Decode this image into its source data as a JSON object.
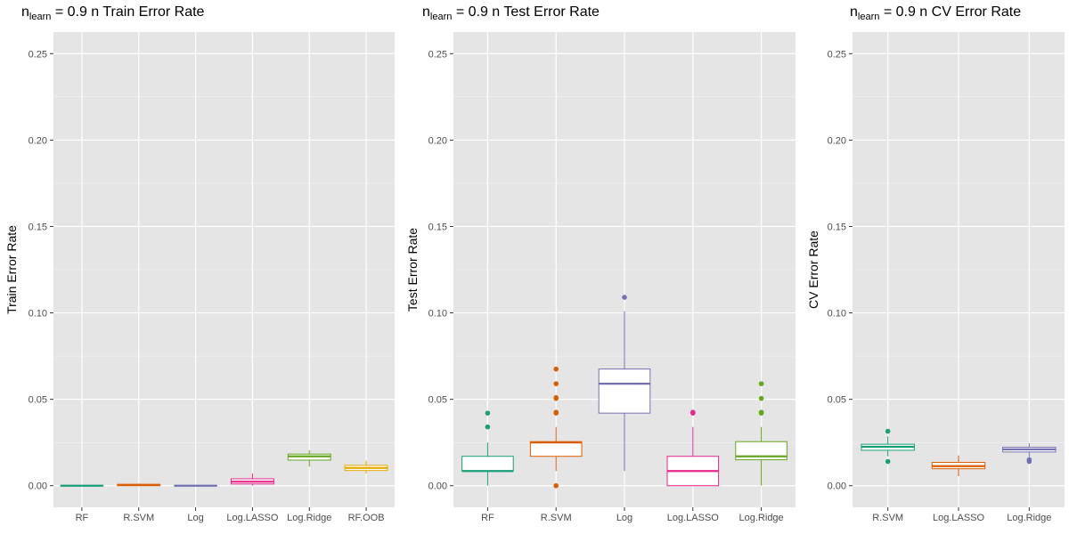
{
  "chart_data": [
    {
      "type": "box",
      "title_n": "n",
      "title_sub": "learn",
      "title_rest": " = 0.9 n  Train Error Rate",
      "xlabel": "",
      "ylabel": "Train Error Rate",
      "ylim": [
        -0.0125,
        0.2625
      ],
      "yticks": [
        "0.00",
        "0.05",
        "0.10",
        "0.15",
        "0.20",
        "0.25"
      ],
      "ytick_values": [
        0,
        0.05,
        0.1,
        0.15,
        0.2,
        0.25
      ],
      "categories": [
        "RF",
        "R.SVM",
        "Log",
        "Log.LASSO",
        "Log.Ridge",
        "RF.OOB"
      ],
      "boxes": [
        {
          "color": "#1b9e77",
          "min": 0,
          "q1": 0,
          "median": 0,
          "q3": 0,
          "max": 0,
          "outliers": []
        },
        {
          "color": "#d95f02",
          "min": 0,
          "q1": 0,
          "median": 0.0004,
          "q3": 0.0008,
          "max": 0.0012,
          "outliers": []
        },
        {
          "color": "#7570b3",
          "min": 0,
          "q1": 0,
          "median": 0,
          "q3": 0,
          "max": 0,
          "outliers": []
        },
        {
          "color": "#e7298a",
          "min": 0,
          "q1": 0.001,
          "median": 0.0023,
          "q3": 0.004,
          "max": 0.007,
          "outliers": []
        },
        {
          "color": "#66a61e",
          "min": 0.011,
          "q1": 0.0148,
          "median": 0.017,
          "q3": 0.0183,
          "max": 0.0205,
          "outliers": []
        },
        {
          "color": "#e6ab02",
          "min": 0.007,
          "q1": 0.0088,
          "median": 0.0103,
          "q3": 0.0118,
          "max": 0.0145,
          "outliers": []
        }
      ]
    },
    {
      "type": "box",
      "title_n": "n",
      "title_sub": "learn",
      "title_rest": " = 0.9 n  Test Error Rate",
      "xlabel": "",
      "ylabel": "Test Error Rate",
      "ylim": [
        -0.0125,
        0.2625
      ],
      "yticks": [
        "0.00",
        "0.05",
        "0.10",
        "0.15",
        "0.20",
        "0.25"
      ],
      "ytick_values": [
        0,
        0.05,
        0.1,
        0.15,
        0.2,
        0.25
      ],
      "categories": [
        "RF",
        "R.SVM",
        "Log",
        "Log.LASSO",
        "Log.Ridge"
      ],
      "boxes": [
        {
          "color": "#1b9e77",
          "min": 0,
          "q1": 0.0085,
          "median": 0.0085,
          "q3": 0.017,
          "max": 0.025,
          "outliers": [
            0.034,
            0.042
          ]
        },
        {
          "color": "#d95f02",
          "min": 0.0085,
          "q1": 0.017,
          "median": 0.025,
          "q3": 0.0255,
          "max": 0.034,
          "outliers": [
            0,
            0.042,
            0.0425,
            0.0505,
            0.051,
            0.059,
            0.0675
          ]
        },
        {
          "color": "#7570b3",
          "min": 0.0085,
          "q1": 0.042,
          "median": 0.059,
          "q3": 0.0675,
          "max": 0.101,
          "outliers": [
            0.109
          ]
        },
        {
          "color": "#e7298a",
          "min": 0,
          "q1": 0,
          "median": 0.0085,
          "q3": 0.017,
          "max": 0.034,
          "outliers": [
            0.042,
            0.0425
          ]
        },
        {
          "color": "#66a61e",
          "min": 0,
          "q1": 0.015,
          "median": 0.017,
          "q3": 0.0255,
          "max": 0.034,
          "outliers": [
            0.042,
            0.0425,
            0.0505,
            0.059
          ]
        }
      ]
    },
    {
      "type": "box",
      "title_n": "n",
      "title_sub": "learn",
      "title_rest": " = 0.9 n  CV Error Rate",
      "xlabel": "",
      "ylabel": "CV Error Rate",
      "ylim": [
        -0.0125,
        0.2625
      ],
      "yticks": [
        "0.00",
        "0.05",
        "0.10",
        "0.15",
        "0.20",
        "0.25"
      ],
      "ytick_values": [
        0,
        0.05,
        0.1,
        0.15,
        0.2,
        0.25
      ],
      "categories": [
        "R.SVM",
        "Log.LASSO",
        "Log.Ridge"
      ],
      "boxes": [
        {
          "color": "#1b9e77",
          "min": 0.017,
          "q1": 0.0205,
          "median": 0.0225,
          "q3": 0.024,
          "max": 0.0285,
          "outliers": [
            0.014,
            0.0315
          ]
        },
        {
          "color": "#d95f02",
          "min": 0.0055,
          "q1": 0.0098,
          "median": 0.0113,
          "q3": 0.0135,
          "max": 0.0175,
          "outliers": []
        },
        {
          "color": "#7570b3",
          "min": 0.0165,
          "q1": 0.0195,
          "median": 0.021,
          "q3": 0.0222,
          "max": 0.0245,
          "outliers": [
            0.014,
            0.015
          ]
        }
      ]
    }
  ]
}
